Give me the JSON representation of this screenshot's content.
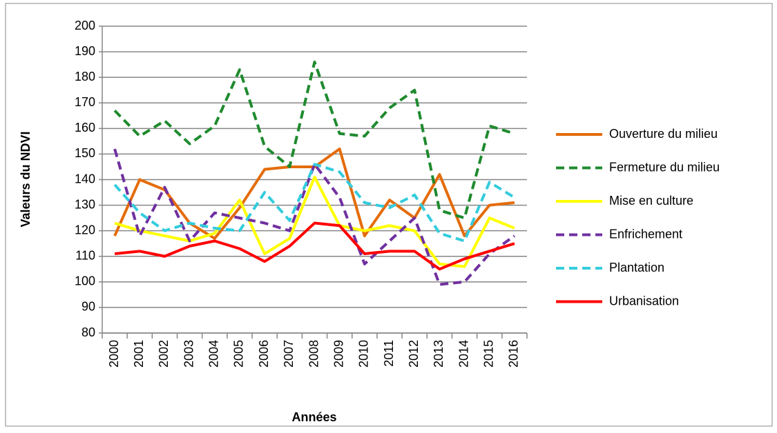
{
  "chart_data": {
    "type": "line",
    "y_label": "Valeurs du NDVI",
    "x_label": "Années",
    "categories": [
      "2000",
      "2001",
      "2002",
      "2003",
      "2004",
      "2005",
      "2006",
      "2007",
      "2008",
      "2009",
      "2010",
      "2011",
      "2012",
      "2013",
      "2014",
      "2015",
      "2016"
    ],
    "series": [
      {
        "name": "Ouverture du milieu",
        "color": "#e46c0a",
        "line_style": "solid",
        "values": [
          118,
          140,
          136,
          123,
          117,
          129,
          144,
          145,
          145,
          152,
          118,
          132,
          125,
          142,
          118,
          130,
          131
        ]
      },
      {
        "name": "Fermeture du milieu",
        "color": "#1e8a2e",
        "line_style": "dashed",
        "values": [
          167,
          157,
          163,
          154,
          161,
          183,
          153,
          145,
          186,
          158,
          157,
          168,
          175,
          128,
          125,
          161,
          158
        ]
      },
      {
        "name": "Mise en culture",
        "color": "#ffff00",
        "line_style": "solid",
        "values": [
          123,
          120,
          118,
          116,
          119,
          132,
          111,
          117,
          141,
          122,
          120,
          122,
          120,
          107,
          106,
          125,
          121
        ]
      },
      {
        "name": "Enfrichement",
        "color": "#7030a0",
        "line_style": "dashed",
        "values": [
          152,
          118,
          137,
          116,
          127,
          125,
          123,
          120,
          146,
          133,
          107,
          116,
          125,
          99,
          100,
          111,
          118
        ]
      },
      {
        "name": "Plantation",
        "color": "#33ccdd",
        "line_style": "dashed",
        "values": [
          138,
          127,
          120,
          123,
          121,
          120,
          135,
          124,
          146,
          143,
          131,
          129,
          134,
          119,
          116,
          139,
          133
        ]
      },
      {
        "name": "Urbanisation",
        "color": "#ff0000",
        "line_style": "solid",
        "values": [
          111,
          112,
          110,
          114,
          116,
          113,
          108,
          114,
          123,
          122,
          111,
          112,
          112,
          105,
          109,
          112,
          115
        ]
      }
    ],
    "ylim": [
      80,
      200
    ],
    "yticks": [
      80,
      90,
      100,
      110,
      120,
      130,
      140,
      150,
      160,
      170,
      180,
      190,
      200
    ],
    "grid": true,
    "legend": "right"
  }
}
